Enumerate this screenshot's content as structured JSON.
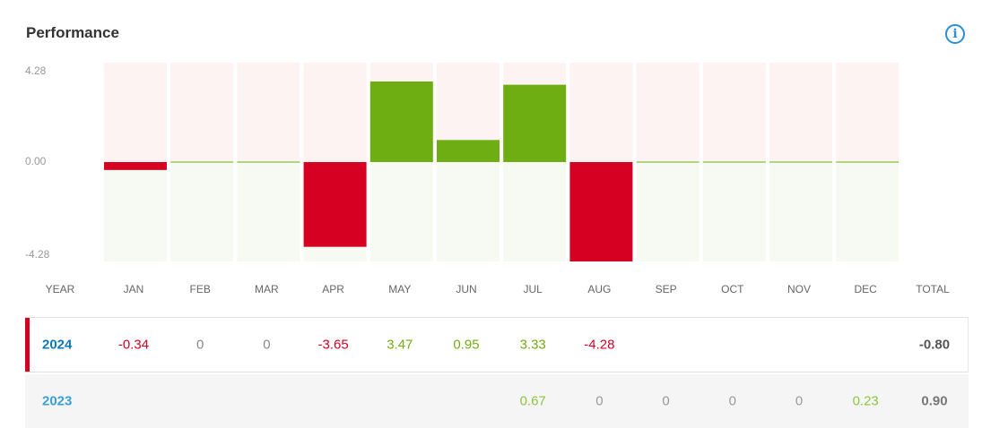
{
  "title": "Performance",
  "icons": {
    "info": "info-icon"
  },
  "colors": {
    "positive": "#6fae12",
    "negative": "#d50022",
    "positive_bg": "#f7faf3",
    "negative_bg": "#fdf3f3",
    "year_2024": "#0d78b8",
    "year_2023": "#3a9fd6"
  },
  "headers": {
    "year": "YEAR",
    "months": [
      "JAN",
      "FEB",
      "MAR",
      "APR",
      "MAY",
      "JUN",
      "JUL",
      "AUG",
      "SEP",
      "OCT",
      "NOV",
      "DEC"
    ],
    "total": "TOTAL"
  },
  "y_ticks": [
    "4.28",
    "0.00",
    "-4.28"
  ],
  "chart_data": {
    "type": "bar",
    "categories": [
      "JAN",
      "FEB",
      "MAR",
      "APR",
      "MAY",
      "JUN",
      "JUL",
      "AUG",
      "SEP",
      "OCT",
      "NOV",
      "DEC"
    ],
    "values": [
      -0.34,
      0,
      0,
      -3.65,
      3.47,
      0.95,
      3.33,
      -4.28,
      0,
      0,
      0,
      0
    ],
    "ylim": [
      -4.28,
      4.28
    ],
    "xlabel": "",
    "ylabel": ""
  },
  "rows": [
    {
      "year": "2024",
      "values": [
        "-0.34",
        "0",
        "0",
        "-3.65",
        "3.47",
        "0.95",
        "3.33",
        "-4.28",
        "",
        "",
        "",
        ""
      ],
      "total": "-0.80",
      "highlight": true
    },
    {
      "year": "2023",
      "values": [
        "",
        "",
        "",
        "",
        "",
        "",
        "0.67",
        "0",
        "0",
        "0",
        "0",
        "0.23"
      ],
      "total": "0.90",
      "highlight": false
    }
  ]
}
